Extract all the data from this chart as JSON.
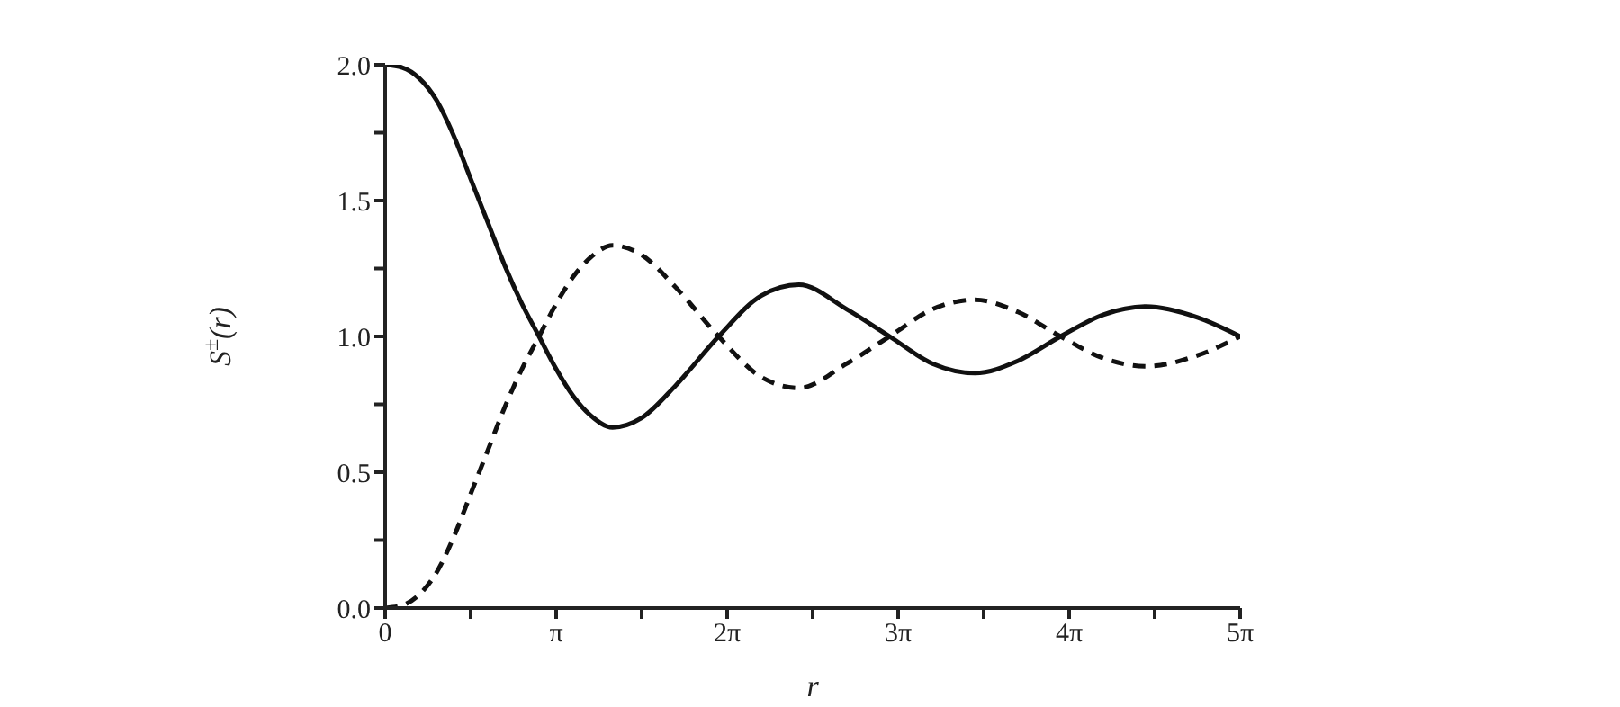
{
  "chart_data": {
    "type": "line",
    "xlabel": "r",
    "ylabel": "S$^{±}$(r)",
    "x": [
      0,
      0.314,
      0.628,
      0.942,
      1.257,
      1.571,
      1.885,
      2.199,
      2.513,
      2.827,
      3.142,
      3.456,
      3.77,
      4.178,
      4.712,
      5.341,
      6.126,
      6.912,
      7.603,
      8.482,
      9.268,
      10.053,
      10.838,
      11.624,
      12.409,
      13.195,
      13.98,
      14.923,
      15.708
    ],
    "series": [
      {
        "color": "#111111",
        "line_style": "solid",
        "values": [
          2.0,
          1.99,
          1.95,
          1.87,
          1.74,
          1.58,
          1.42,
          1.26,
          1.12,
          1.0,
          0.88,
          0.78,
          0.71,
          0.665,
          0.7,
          0.82,
          1.0,
          1.15,
          1.19,
          1.1,
          1.0,
          0.9,
          0.865,
          0.91,
          1.0,
          1.08,
          1.11,
          1.07,
          1.0
        ]
      },
      {
        "color": "#111111",
        "line_style": "dashed",
        "values": [
          0,
          0.01,
          0.05,
          0.13,
          0.26,
          0.42,
          0.58,
          0.74,
          0.88,
          1.0,
          1.12,
          1.22,
          1.29,
          1.335,
          1.3,
          1.18,
          1.0,
          0.85,
          0.81,
          0.9,
          1.0,
          1.1,
          1.135,
          1.09,
          1.0,
          0.92,
          0.89,
          0.93,
          1.0
        ]
      }
    ],
    "xlim": [
      0,
      15.708
    ],
    "xticks": [
      0,
      {
        "value": 1.571,
        "label": null
      },
      {
        "value": 3.142,
        "label": "π"
      },
      {
        "value": 4.712,
        "label": null
      },
      {
        "value": 6.283,
        "label": "2π"
      },
      {
        "value": 7.854,
        "label": null
      },
      {
        "value": 9.425,
        "label": "3π"
      },
      {
        "value": 10.996,
        "label": null
      },
      {
        "value": 12.566,
        "label": "4π"
      },
      {
        "value": 14.137,
        "label": null
      },
      {
        "value": 15.708,
        "label": "5π"
      }
    ],
    "ylim": [
      0,
      2
    ],
    "yticks": [
      {
        "value": 0,
        "label": "0.0"
      },
      {
        "value": 0.25,
        "label": null
      },
      {
        "value": 0.5,
        "label": "0.5"
      },
      {
        "value": 0.75,
        "label": null
      },
      {
        "value": 1,
        "label": "1.0"
      },
      {
        "value": 1.25,
        "label": null
      },
      {
        "value": 1.5,
        "label": "1.5"
      },
      {
        "value": 1.75,
        "label": null
      },
      {
        "value": 2,
        "label": "2.0"
      }
    ],
    "grid": false,
    "legend": false,
    "marker": "none"
  }
}
